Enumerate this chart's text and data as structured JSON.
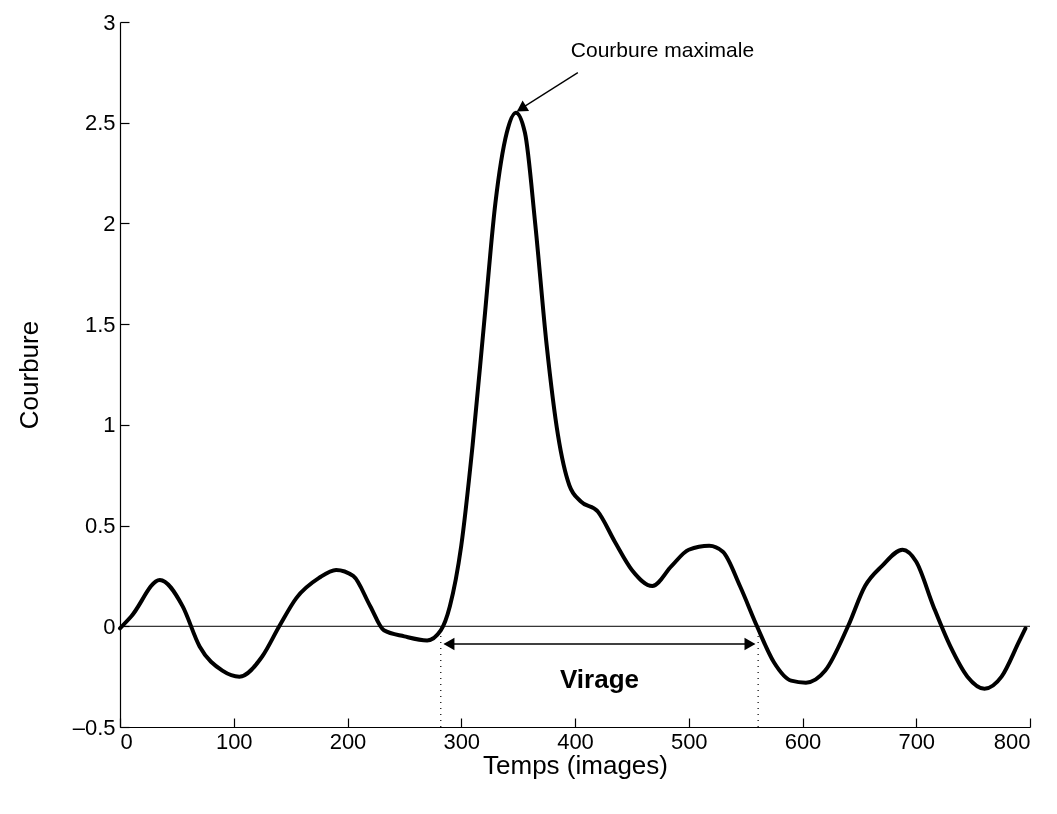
{
  "chart_data": {
    "type": "line",
    "xlabel": "Temps (images)",
    "ylabel": "Courbure",
    "xlim": [
      0,
      800
    ],
    "xticks": [
      0,
      100,
      200,
      300,
      400,
      500,
      600,
      700,
      800
    ],
    "ylim": [
      -0.5,
      3
    ],
    "yticks": [
      {
        "value": -0.5,
        "label": "–0.5"
      },
      0,
      0.5,
      1,
      1.5,
      2,
      2.5,
      3
    ],
    "grid": false,
    "marker": "none",
    "line_style": "solid",
    "series": [
      {
        "color": "#000000",
        "x": [
          0,
          10,
          35,
          55,
          70,
          90,
          105,
          125,
          140,
          155,
          175,
          190,
          205,
          220,
          232,
          250,
          270,
          282,
          290,
          300,
          310,
          320,
          330,
          340,
          348,
          356,
          365,
          375,
          385,
          395,
          405,
          420,
          435,
          450,
          468,
          485,
          500,
          518,
          530,
          545,
          560,
          575,
          590,
          603,
          620,
          640,
          655,
          670,
          688,
          700,
          715,
          730,
          745,
          760,
          775,
          790,
          796
        ],
        "values": [
          -0.01,
          0.05,
          0.23,
          0.1,
          -0.1,
          -0.22,
          -0.25,
          -0.15,
          0.0,
          0.14,
          0.24,
          0.28,
          0.25,
          0.1,
          -0.02,
          -0.05,
          -0.07,
          -0.02,
          0.1,
          0.4,
          0.9,
          1.5,
          2.1,
          2.45,
          2.55,
          2.45,
          2.0,
          1.4,
          0.95,
          0.7,
          0.62,
          0.57,
          0.42,
          0.28,
          0.2,
          0.3,
          0.38,
          0.4,
          0.37,
          0.2,
          0.0,
          -0.18,
          -0.27,
          -0.28,
          -0.22,
          0.0,
          0.2,
          0.3,
          0.38,
          0.32,
          0.1,
          -0.1,
          -0.25,
          -0.31,
          -0.25,
          -0.08,
          -0.01
        ]
      }
    ],
    "ref_lines": [
      {
        "axis": "y",
        "value": 0,
        "color": "#000000"
      },
      {
        "axis": "x",
        "value": 282,
        "color": "#000000",
        "line_style": "dotted"
      },
      {
        "axis": "x",
        "value": 561,
        "color": "#000000",
        "line_style": "dotted"
      }
    ],
    "annotations": [
      {
        "text": "Courbure maximale",
        "x": 348,
        "y": 2.55
      },
      "Virage"
    ]
  }
}
